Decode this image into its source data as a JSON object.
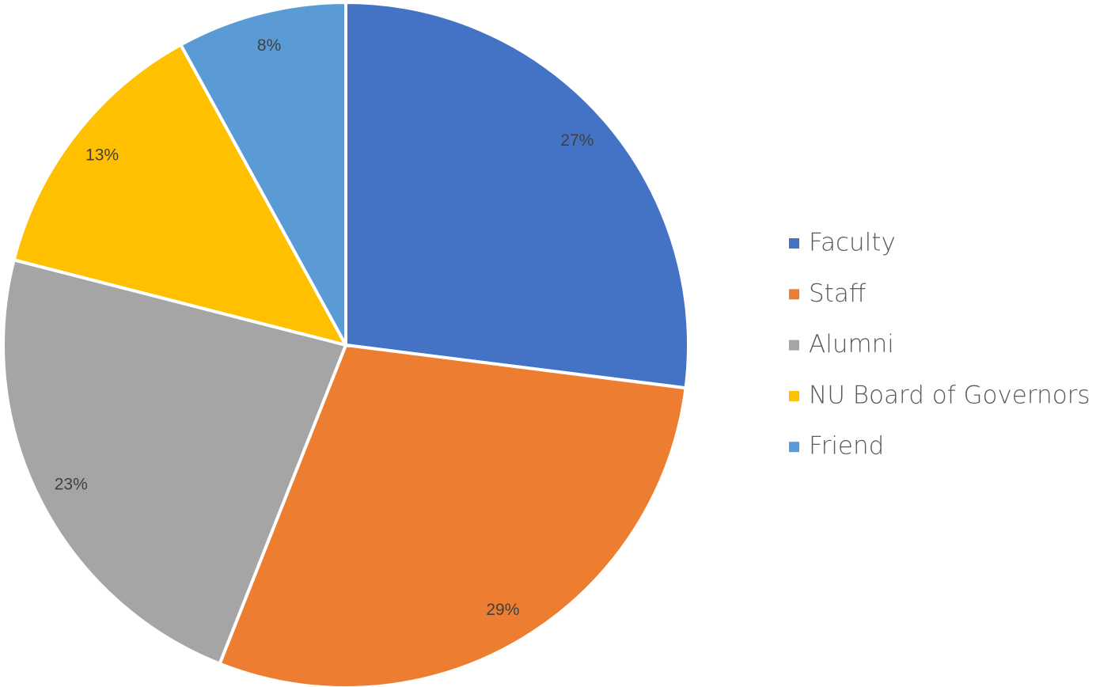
{
  "chart_data": {
    "type": "pie",
    "categories": [
      "Faculty",
      "Staff",
      "Alumni",
      "NU Board of Governors",
      "Friend"
    ],
    "values": [
      27,
      29,
      23,
      13,
      8
    ],
    "value_labels": [
      "27%",
      "29%",
      "23%",
      "13%",
      "8%"
    ],
    "colors": [
      "#4472c4",
      "#ed7d31",
      "#a5a5a5",
      "#ffc000",
      "#5b9bd5"
    ],
    "legend": "right"
  }
}
